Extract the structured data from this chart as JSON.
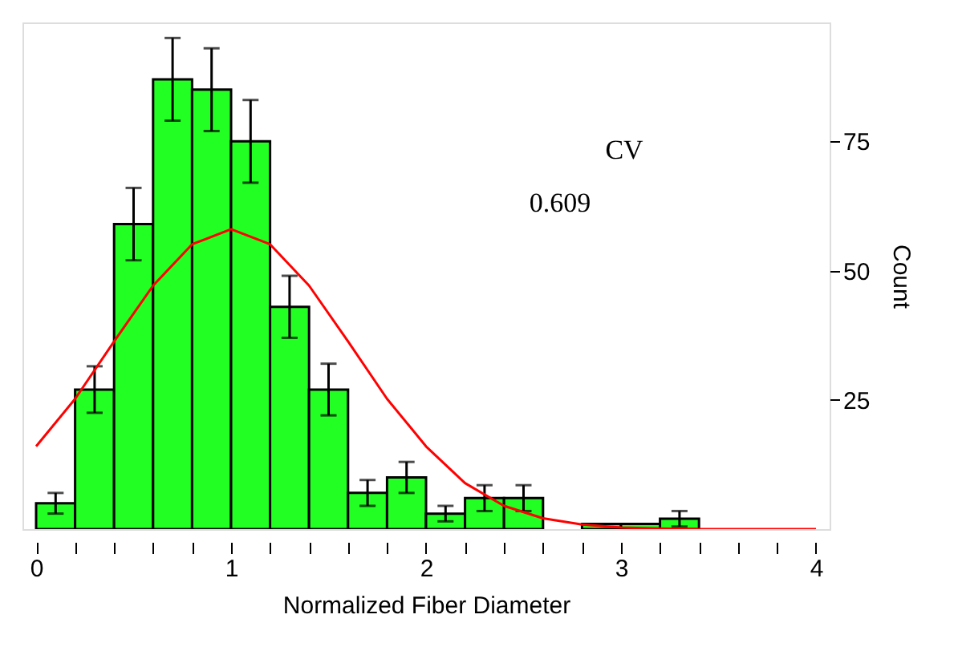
{
  "chart_data": {
    "type": "histogram",
    "xlabel": "Normalized Fiber Diameter",
    "ylabel": "Count",
    "bins": [
      0,
      0.2,
      0.4,
      0.6,
      0.8,
      1.0,
      1.2,
      1.4,
      1.6,
      1.8,
      2.0,
      2.2,
      2.4,
      2.6,
      2.8,
      3.0,
      3.2,
      3.4,
      3.6,
      3.8,
      4.0
    ],
    "values": [
      5,
      27,
      59,
      87,
      85,
      75,
      43,
      27,
      7,
      10,
      3,
      6,
      6,
      0,
      1,
      1,
      2,
      0,
      0,
      0
    ],
    "errors": [
      2,
      4.5,
      7,
      8,
      8,
      8,
      6,
      5,
      2.5,
      3,
      1.5,
      2.5,
      2.5,
      null,
      null,
      null,
      1.5,
      null,
      null,
      null
    ],
    "color": "#22ff22",
    "series": [
      {
        "type": "line",
        "color": "#ff0000",
        "x": [
          0,
          0.2,
          0.4,
          0.6,
          0.8,
          1.0,
          1.2,
          1.4,
          1.6,
          1.8,
          2.0,
          2.2,
          2.4,
          2.6,
          2.8,
          3.0,
          3.2,
          3.4,
          4.0
        ],
        "values": [
          16.0,
          25.2,
          36.3,
          47.1,
          55.1,
          58.0,
          55.1,
          47.1,
          36.3,
          25.2,
          16.0,
          8.9,
          4.5,
          2.1,
          0.9,
          0.3,
          0.1,
          0,
          0
        ]
      }
    ],
    "annotations": [
      "CV",
      "0.609"
    ],
    "xlim": [
      -0.07,
      4.07
    ],
    "xticks": [
      0,
      {
        "value": 0.2,
        "label": null
      },
      {
        "value": 0.4,
        "label": null
      },
      {
        "value": 0.6,
        "label": null
      },
      {
        "value": 0.8,
        "label": null
      },
      1,
      {
        "value": 1.2,
        "label": null
      },
      {
        "value": 1.4,
        "label": null
      },
      {
        "value": 1.6,
        "label": null
      },
      {
        "value": 1.8,
        "label": null
      },
      2,
      {
        "value": 2.2,
        "label": null
      },
      {
        "value": 2.4,
        "label": null
      },
      {
        "value": 2.6,
        "label": null
      },
      {
        "value": 2.8,
        "label": null
      },
      3,
      {
        "value": 3.2,
        "label": null
      },
      {
        "value": 3.4,
        "label": null
      },
      {
        "value": 3.6,
        "label": null
      },
      {
        "value": 3.8,
        "label": null
      },
      4
    ],
    "ylim": [
      0,
      98
    ],
    "yticks": [
      25,
      50,
      75
    ]
  }
}
